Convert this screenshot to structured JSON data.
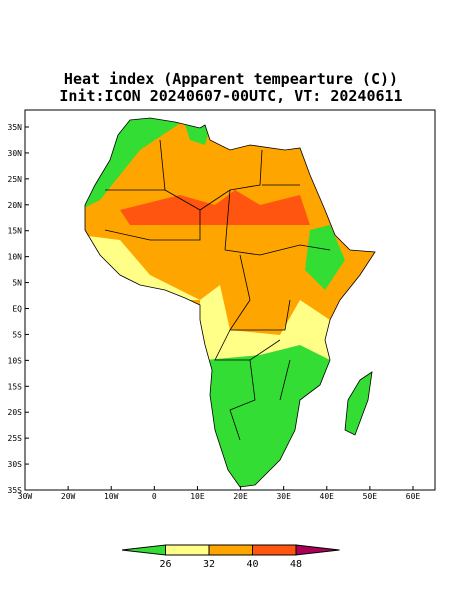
{
  "title": "Heat index (Apparent tempearture (C))",
  "subtitle": "Init:ICON 20240607-00UTC, VT: 20240611",
  "map": {
    "lon_ticks": [
      "30W",
      "20W",
      "10W",
      "0",
      "10E",
      "20E",
      "30E",
      "40E",
      "50E",
      "60E"
    ],
    "lat_ticks": [
      "35N",
      "30N",
      "25N",
      "20N",
      "15N",
      "10N",
      "5N",
      "EQ",
      "5S",
      "10S",
      "15S",
      "20S",
      "25S",
      "30S",
      "35S"
    ]
  },
  "colorbar": {
    "values": [
      26,
      32,
      40,
      48
    ],
    "colors": [
      "#33dd33",
      "#ffff88",
      "#ffa500",
      "#ff5511",
      "#aa0055"
    ]
  }
}
